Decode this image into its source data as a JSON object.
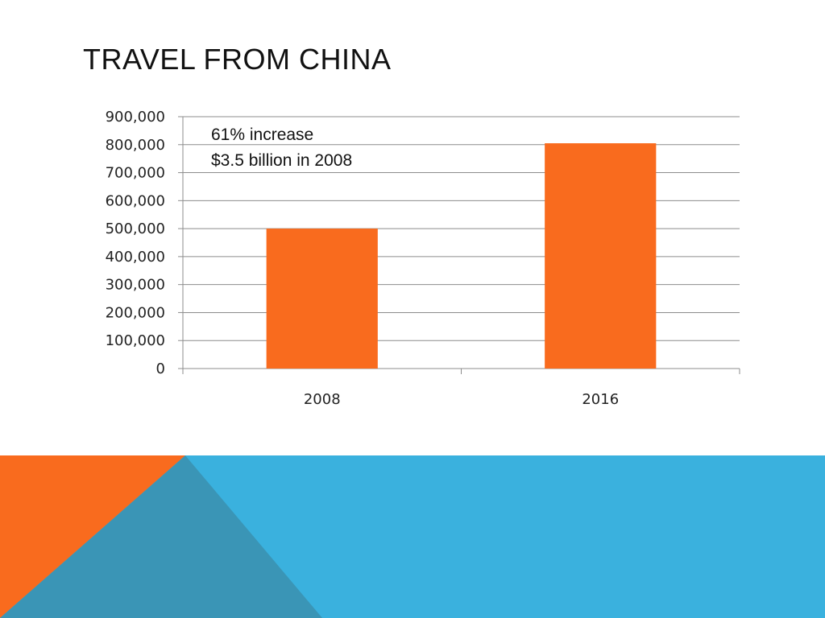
{
  "slide": {
    "title": "TRAVEL FROM CHINA"
  },
  "colors": {
    "bar": "#F96B1E",
    "grid": "#8c8c8c",
    "footer_blue": "#3AB1DE",
    "footer_orange": "#F96B1E",
    "footer_overlap": "#3A95B6"
  },
  "chart_data": {
    "type": "bar",
    "categories": [
      "2008",
      "2016"
    ],
    "values": [
      500000,
      805000
    ],
    "ylim": [
      0,
      900000
    ],
    "yticks": [
      "0",
      "100,000",
      "200,000",
      "300,000",
      "400,000",
      "500,000",
      "600,000",
      "700,000",
      "800,000",
      "900,000"
    ],
    "grid": true,
    "annotations": [
      "61% increase",
      "$3.5 billion in 2008"
    ]
  }
}
